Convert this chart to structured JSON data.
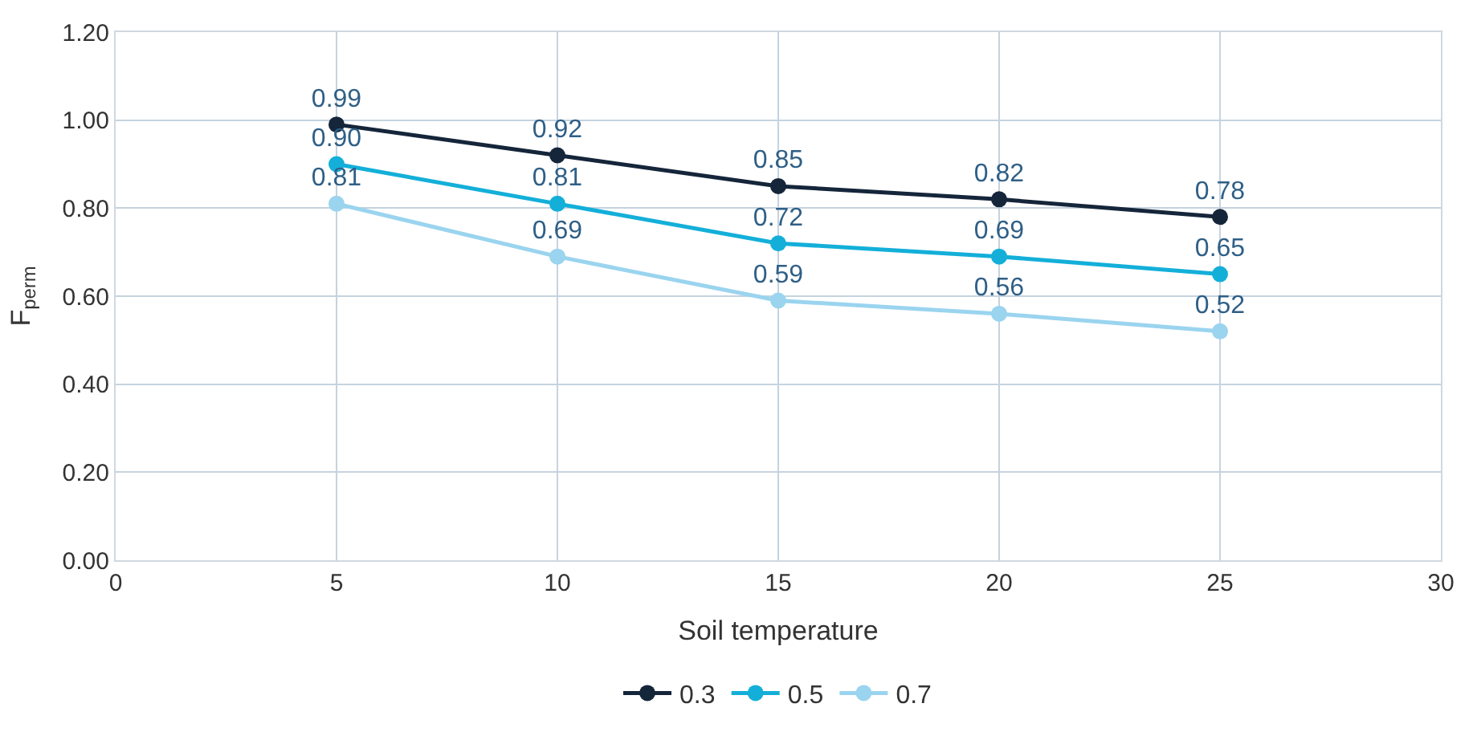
{
  "chart_data": {
    "type": "line",
    "xlabel": "Soil temperature",
    "ylabel": "F$_{perm}$",
    "x": [
      5,
      10,
      15,
      20,
      25
    ],
    "series": [
      {
        "name": "0.3",
        "color": "#15253a",
        "values": [
          0.99,
          0.92,
          0.85,
          0.82,
          0.78
        ],
        "value_labels": [
          "0.99",
          "0.92",
          "0.85",
          "0.82",
          "0.78"
        ]
      },
      {
        "name": "0.5",
        "color": "#13afd9",
        "values": [
          0.9,
          0.81,
          0.72,
          0.69,
          0.65
        ],
        "value_labels": [
          "0.90",
          "0.81",
          "0.72",
          "0.69",
          "0.65"
        ]
      },
      {
        "name": "0.7",
        "color": "#9ad4ef",
        "values": [
          0.81,
          0.69,
          0.59,
          0.56,
          0.52
        ],
        "value_labels": [
          "0.81",
          "0.69",
          "0.59",
          "0.56",
          "0.52"
        ]
      }
    ],
    "xlim": [
      0,
      30
    ],
    "xticks": [
      0,
      5,
      10,
      15,
      20,
      25,
      30
    ],
    "ylim": [
      0,
      1.2
    ],
    "yticks": [
      {
        "value": 0,
        "label": "0.00"
      },
      {
        "value": 0.2,
        "label": "0.20"
      },
      {
        "value": 0.4,
        "label": "0.40"
      },
      {
        "value": 0.6,
        "label": "0.60"
      },
      {
        "value": 0.8,
        "label": "0.80"
      },
      {
        "value": 1.0,
        "label": "1.00"
      },
      {
        "value": 1.2,
        "label": "1.20"
      }
    ],
    "grid": true,
    "legend": "bottom",
    "marker": "circle",
    "line_style": "solid"
  }
}
